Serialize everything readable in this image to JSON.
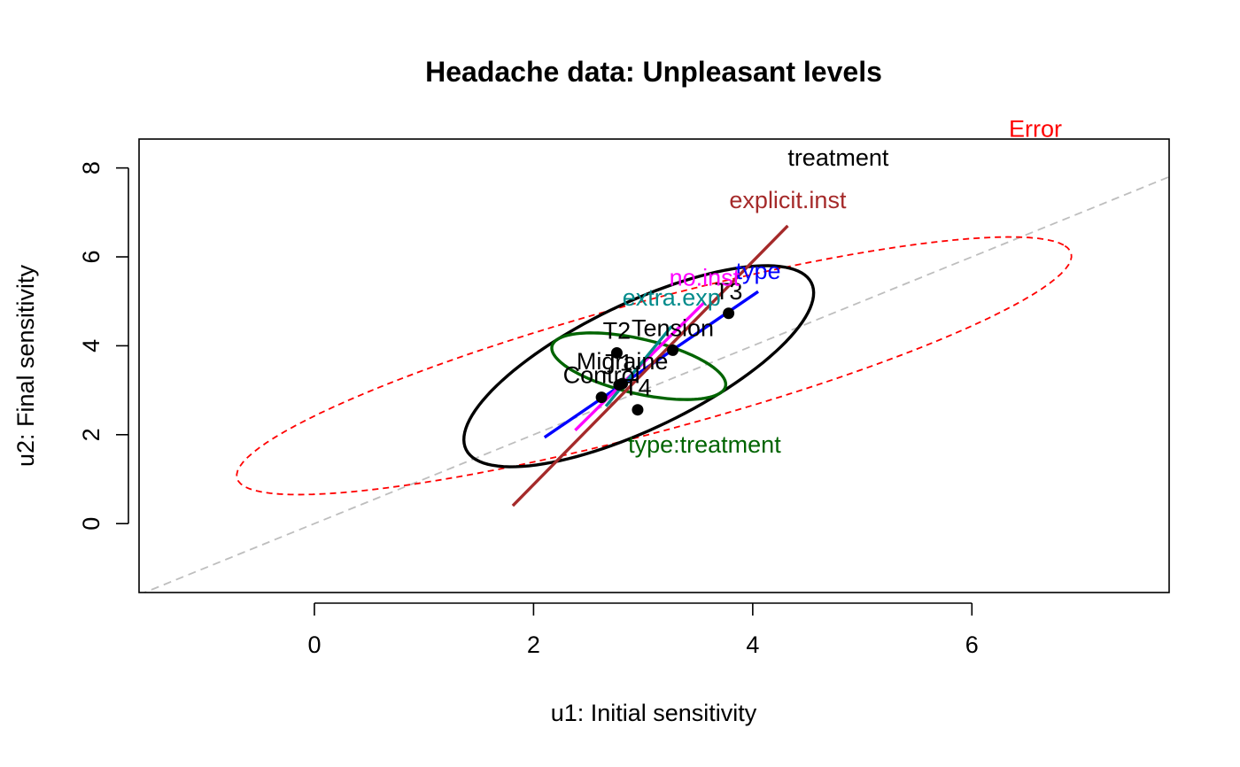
{
  "chart_data": {
    "type": "scatter",
    "title": "Headache data: Unpleasant levels",
    "xlabel": "u1: Initial sensitivity",
    "ylabel": "u2: Final sensitivity",
    "xlim": [
      -1.6,
      7.8
    ],
    "ylim": [
      -1.55,
      8.65
    ],
    "xticks": [
      0,
      2,
      4,
      6
    ],
    "yticks": [
      0,
      2,
      4,
      6,
      8
    ],
    "grid": false,
    "reference_line": {
      "slope": 1.0,
      "intercept": 0,
      "color": "#bebebe"
    },
    "points": [
      {
        "label": "T1",
        "x": 2.78,
        "y": 3.12
      },
      {
        "label": "T2",
        "x": 2.76,
        "y": 3.84
      },
      {
        "label": "T3",
        "x": 3.78,
        "y": 4.73
      },
      {
        "label": "Migraine",
        "x": 2.81,
        "y": 3.15
      },
      {
        "label": "Tension",
        "x": 3.27,
        "y": 3.9
      },
      {
        "label": "Control",
        "x": 2.62,
        "y": 2.84
      },
      {
        "label": "T4",
        "x": 2.95,
        "y": 2.56
      }
    ],
    "hypothesis_ellipses": [
      {
        "name": "Error",
        "color": "#ff0000",
        "dashed": true,
        "cx": 3.1,
        "cy": 3.55,
        "a": 4.62,
        "b": 1.25,
        "angle_deg": 36
      },
      {
        "name": "treatment",
        "color": "#000000",
        "dashed": false,
        "cx": 2.96,
        "cy": 3.54,
        "a": 2.6,
        "b": 0.95,
        "angle_deg": 58
      },
      {
        "name": "type:treatment",
        "color": "#006400",
        "dashed": false,
        "cx": 2.96,
        "cy": 3.54,
        "a": 0.96,
        "b": 0.52,
        "angle_deg": -42
      }
    ],
    "hypothesis_lines": [
      {
        "name": "type",
        "color": "#0000ff",
        "x": [
          2.1,
          4.05
        ],
        "y": [
          1.94,
          5.22
        ]
      },
      {
        "name": "no.inst",
        "color": "#ff00ff",
        "x": [
          2.38,
          3.56
        ],
        "y": [
          2.1,
          4.98
        ]
      },
      {
        "name": "extra.exp",
        "color": "#008b8b",
        "x": [
          2.66,
          3.26
        ],
        "y": [
          2.64,
          4.44
        ]
      },
      {
        "name": "explicit.inst",
        "color": "#a52a2a",
        "x": [
          1.81,
          4.32
        ],
        "y": [
          0.4,
          6.7
        ]
      }
    ],
    "ellipse_labels": [
      {
        "text": "Error",
        "x": 6.58,
        "y": 8.7,
        "color": "#ff0000"
      },
      {
        "text": "treatment",
        "x": 4.78,
        "y": 8.05,
        "color": "#000000"
      },
      {
        "text": "explicit.inst",
        "x": 4.32,
        "y": 7.1,
        "color": "#a52a2a"
      },
      {
        "text": "type",
        "x": 4.05,
        "y": 5.5,
        "color": "#0000ff"
      },
      {
        "text": "no.inst",
        "x": 3.56,
        "y": 5.35,
        "color": "#ff00ff"
      },
      {
        "text": "extra.exp",
        "x": 3.26,
        "y": 4.9,
        "color": "#008b8b"
      },
      {
        "text": "type:treatment",
        "x": 3.56,
        "y": 1.6,
        "color": "#006400"
      }
    ]
  }
}
